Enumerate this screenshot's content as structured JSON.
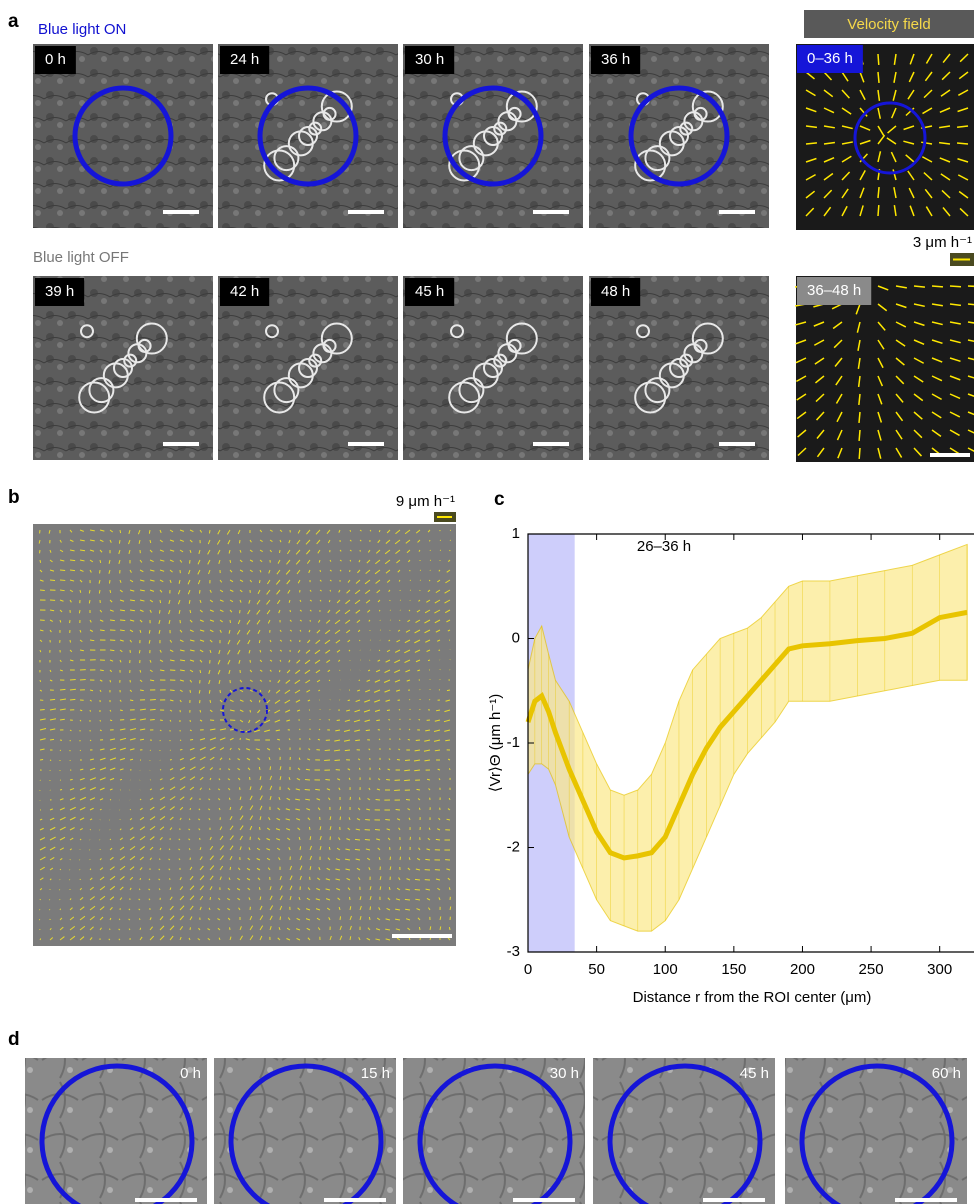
{
  "panel_labels": [
    "a",
    "b",
    "c",
    "d"
  ],
  "panel_a": {
    "on_label": "Blue light ON",
    "off_label": "Blue light OFF",
    "on_times": [
      "0 h",
      "24 h",
      "30 h",
      "36 h"
    ],
    "off_times": [
      "39 h",
      "42 h",
      "45 h",
      "48 h"
    ],
    "velocity_title": "Velocity field",
    "velocity_on": "0–36 h",
    "velocity_off": "36–48 h",
    "velocity_scale": "3 μm h⁻¹"
  },
  "panel_b": {
    "velocity_scale": "9 μm h⁻¹"
  },
  "chart_data": {
    "type": "line",
    "title": "26–36 h",
    "xlabel": "Distance r from the ROI center (μm)",
    "ylabel": "⟨Vr⟩Θ (μm h⁻¹)",
    "x": [
      0,
      5,
      10,
      15,
      20,
      30,
      40,
      50,
      60,
      70,
      80,
      90,
      100,
      110,
      120,
      130,
      140,
      150,
      160,
      170,
      180,
      190,
      200,
      220,
      240,
      260,
      280,
      300,
      320
    ],
    "values": [
      -0.8,
      -0.6,
      -0.55,
      -0.7,
      -0.9,
      -1.25,
      -1.55,
      -1.85,
      -2.05,
      -2.1,
      -2.08,
      -2.05,
      -1.9,
      -1.6,
      -1.3,
      -1.05,
      -0.85,
      -0.7,
      -0.55,
      -0.4,
      -0.25,
      -0.1,
      -0.07,
      -0.05,
      -0.02,
      0.0,
      0.05,
      0.2,
      0.25
    ],
    "band_upper": [
      -0.3,
      0.0,
      0.12,
      -0.15,
      -0.4,
      -0.6,
      -0.9,
      -1.2,
      -1.45,
      -1.5,
      -1.45,
      -1.3,
      -1.0,
      -0.6,
      -0.3,
      -0.15,
      0.0,
      0.05,
      0.1,
      0.2,
      0.35,
      0.5,
      0.55,
      0.55,
      0.6,
      0.65,
      0.7,
      0.8,
      0.9
    ],
    "band_lower": [
      -1.3,
      -1.2,
      -1.2,
      -1.25,
      -1.4,
      -1.9,
      -2.2,
      -2.5,
      -2.7,
      -2.75,
      -2.8,
      -2.8,
      -2.7,
      -2.5,
      -2.2,
      -1.9,
      -1.6,
      -1.3,
      -1.1,
      -0.95,
      -0.8,
      -0.6,
      -0.6,
      -0.6,
      -0.55,
      -0.5,
      -0.45,
      -0.4,
      -0.4
    ],
    "color": "#e8c400",
    "band_color": "#fbe98a",
    "highlight_range": [
      0,
      34
    ],
    "highlight_color": "#c9c9fb",
    "xlim": [
      0,
      325
    ],
    "ylim": [
      -3,
      1
    ],
    "xticks": [
      0,
      50,
      100,
      150,
      200,
      250,
      300
    ],
    "yticks": [
      -3,
      -2,
      -1,
      0,
      1
    ]
  },
  "panel_d": {
    "times": [
      "0 h",
      "15 h",
      "30 h",
      "45 h",
      "60 h"
    ]
  }
}
